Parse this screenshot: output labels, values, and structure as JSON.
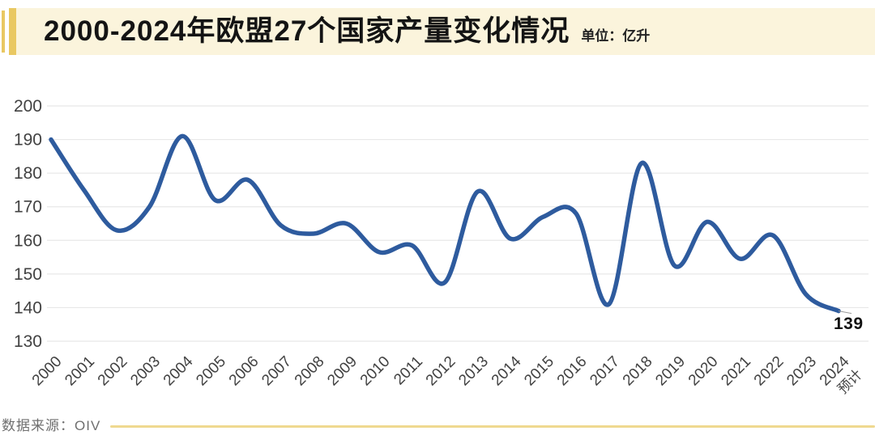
{
  "header": {
    "title": "2000-2024年欧盟27个国家产量变化情况",
    "unit": "单位：亿升"
  },
  "footer": {
    "source": "数据来源：OIV"
  },
  "colors": {
    "accent_gold": "#E9C862",
    "header_bg": "#FBF4DC",
    "line_blue": "#2E5B9E",
    "grid_gray": "#E8E8E8",
    "tick_text": "#424242",
    "footer_line_gold": "#EFD990"
  },
  "chart_data": {
    "type": "line",
    "title": "2000-2024年欧盟27个国家产量变化情况",
    "unit": "亿升",
    "categories": [
      "2000",
      "2001",
      "2002",
      "2003",
      "2004",
      "2005",
      "2006",
      "2007",
      "2008",
      "2009",
      "2010",
      "2011",
      "2012",
      "2013",
      "2014",
      "2015",
      "2016",
      "2017",
      "2018",
      "2019",
      "2020",
      "2021",
      "2022",
      "2023",
      "2024"
    ],
    "last_category_note": "预计",
    "values": [
      190,
      175,
      163,
      170,
      191,
      172,
      178,
      164.5,
      162,
      165,
      156.5,
      158.5,
      147.5,
      174.5,
      160.5,
      167,
      168,
      141,
      183,
      152.5,
      165.5,
      154.5,
      161.5,
      144,
      139
    ],
    "end_label": "139",
    "yticks": [
      200,
      190,
      180,
      170,
      160,
      150,
      140,
      130
    ],
    "ylim": [
      130,
      200
    ],
    "xlabel": "",
    "ylabel": "",
    "grid": "horizontal-only",
    "legend": "none",
    "smooth": true
  }
}
